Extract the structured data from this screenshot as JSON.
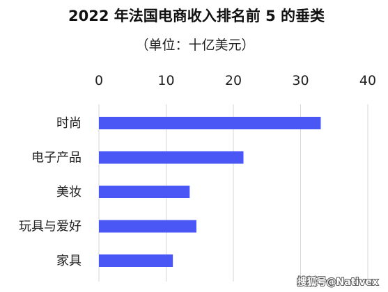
{
  "chart_data": {
    "type": "bar",
    "orientation": "horizontal",
    "title": "2022 年法国电商收入排名前 5 的垂类",
    "subtitle": "（单位：十亿美元）",
    "categories": [
      "时尚",
      "电子产品",
      "美妆",
      "玩具与爱好",
      "家具"
    ],
    "values": [
      33,
      21.5,
      13.5,
      14.5,
      11
    ],
    "xlim": [
      0,
      40
    ],
    "xticks": [
      0,
      10,
      20,
      30,
      40
    ],
    "x_axis_position": "top",
    "grid": true,
    "legend": "none",
    "bar_color": "#4a57f5"
  },
  "watermark": "搜狐号@Nativex"
}
